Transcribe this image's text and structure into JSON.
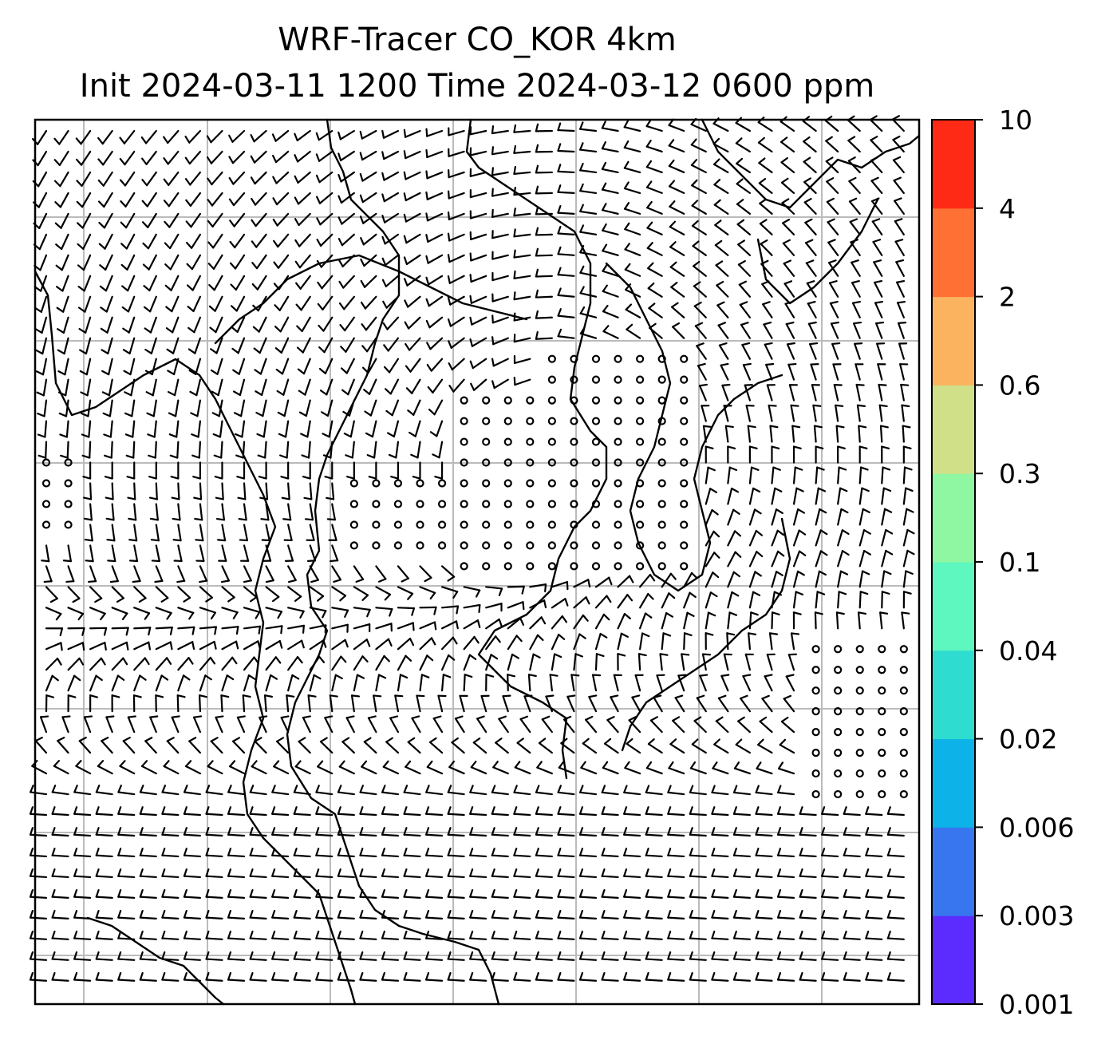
{
  "title": {
    "line1": "WRF-Tracer CO_KOR 4km",
    "line2": "Init 2024-03-11 1200 Time 2024-03-12 0600 ppm"
  },
  "colorbar": {
    "levels": [
      "0.001",
      "0.003",
      "0.006",
      "0.02",
      "0.04",
      "0.1",
      "0.3",
      "0.6",
      "2",
      "4",
      "10"
    ],
    "colors": [
      "#5c2cff",
      "#3876f0",
      "#0cb2e8",
      "#2fdcd0",
      "#5ef7c0",
      "#8ff7a2",
      "#cfe088",
      "#fcb360",
      "#ff7035",
      "#ff2a16"
    ]
  },
  "map": {
    "background": "#ffffff",
    "gridline_color": "#bbbbbb",
    "barb_color": "#000000",
    "features": [
      "coastlines",
      "grid lines",
      "wind barbs"
    ]
  }
}
